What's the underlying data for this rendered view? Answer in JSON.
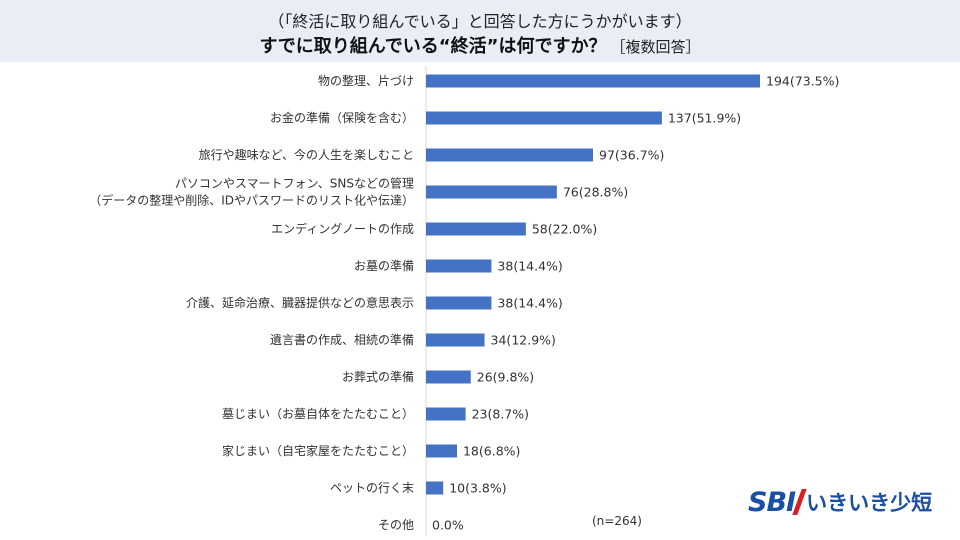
{
  "header": {
    "subtitle": "（「終活に取り組んでいる」と回答した方にうかがいます）",
    "title": "すでに取り組んでいる“終活”は何ですか？",
    "title_note": "［複数回答］"
  },
  "sample_note": "(n=264)",
  "logo": {
    "mark": "SBI",
    "text": "いきいき少短"
  },
  "colors": {
    "bar": "#4472c4",
    "header_bg": "#e8edf6",
    "brand_blue": "#1b4fa3",
    "brand_red": "#d7201f"
  },
  "chart_data": {
    "type": "bar",
    "orientation": "horizontal",
    "title": "すでに取り組んでいる“終活”は何ですか？",
    "categories": [
      [
        "物の整理、片づけ"
      ],
      [
        "お金の準備（保険を含む）"
      ],
      [
        "旅行や趣味など、今の人生を楽しむこと"
      ],
      [
        "パソコンやスマートフォン、SNSなどの管理",
        "（データの整理や削除、IDやパスワードのリスト化や伝達）"
      ],
      [
        "エンディングノートの作成"
      ],
      [
        "お墓の準備"
      ],
      [
        "介護、延命治療、臓器提供などの意思表示"
      ],
      [
        "遺言書の作成、相続の準備"
      ],
      [
        "お葬式の準備"
      ],
      [
        "墓じまい（お墓自体をたたむこと）"
      ],
      [
        "家じまい（自宅家屋をたたむこと）"
      ],
      [
        "ペットの行く末"
      ],
      [
        "その他"
      ]
    ],
    "values": [
      194,
      137,
      97,
      76,
      58,
      38,
      38,
      34,
      26,
      23,
      18,
      10,
      0
    ],
    "value_labels": [
      "194(73.5%)",
      "137(51.9%)",
      "97(36.7%)",
      "76(28.8%)",
      "58(22.0%)",
      "38(14.4%)",
      "38(14.4%)",
      "34(12.9%)",
      "26(9.8%)",
      "23(8.7%)",
      "18(6.8%)",
      "10(3.8%)",
      "0.0%"
    ],
    "xlim": [
      0,
      194
    ],
    "grid": false,
    "legend": "none"
  }
}
